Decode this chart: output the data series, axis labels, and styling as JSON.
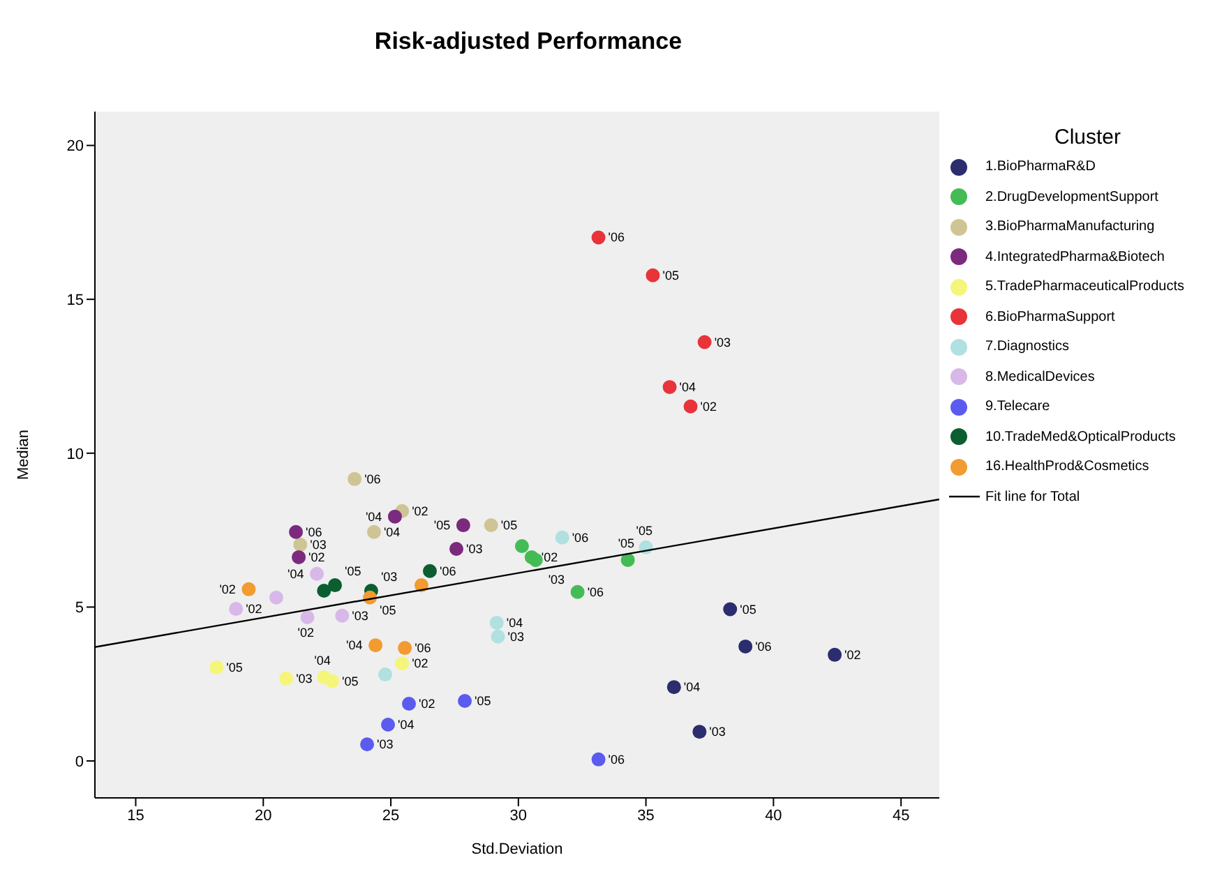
{
  "chart_data": {
    "type": "scatter",
    "title": "Risk-adjusted Performance",
    "xlabel": "Std.Deviation",
    "ylabel": "Median",
    "legend_title": "Cluster",
    "legend": "right",
    "marker": "circle",
    "xlim": [
      13.4,
      46.5
    ],
    "xticks": [
      15,
      20,
      25,
      30,
      35,
      40,
      45
    ],
    "ylim": [
      -1.2,
      21.1
    ],
    "yticks": [
      0,
      5,
      10,
      15,
      20
    ],
    "series": [
      {
        "name": "1.BioPharmaR&D",
        "color": "#2b2d6e",
        "x": [
          38.3,
          38.9,
          42.4,
          36.1,
          37.1
        ],
        "values": [
          4.93,
          3.72,
          3.45,
          2.4,
          0.95
        ]
      },
      {
        "name": "2.DrugDevelopmentSupport",
        "color": "#44bb55",
        "x": [
          30.14,
          30.52,
          30.68,
          34.29,
          32.32
        ],
        "values": [
          6.98,
          6.62,
          6.53,
          6.53,
          5.49
        ]
      },
      {
        "name": "3.BioPharmaManufacturing",
        "color": "#cfc494",
        "x": [
          23.58,
          24.34,
          25.44,
          28.93,
          21.45
        ],
        "values": [
          9.16,
          7.44,
          8.12,
          7.66,
          7.03
        ]
      },
      {
        "name": "4.IntegratedPharma&Biotech",
        "color": "#7b2a7e",
        "x": [
          21.28,
          21.39,
          25.16,
          27.84,
          27.57
        ],
        "values": [
          7.44,
          6.62,
          7.94,
          7.66,
          6.89
        ]
      },
      {
        "name": "5.TradePharmaceuticalProducts",
        "color": "#f5f57a",
        "x": [
          18.17,
          20.9,
          22.38,
          22.7,
          25.44
        ],
        "values": [
          3.04,
          2.68,
          2.72,
          2.59,
          3.17
        ]
      },
      {
        "name": "6.BioPharmaSupport",
        "color": "#e8333a",
        "x": [
          33.14,
          35.27,
          37.3,
          35.93,
          36.75
        ],
        "values": [
          17.01,
          15.78,
          13.61,
          12.15,
          11.52
        ]
      },
      {
        "name": "7.Diagnostics",
        "color": "#b0e0e0",
        "x": [
          31.72,
          35.0,
          29.15,
          29.2,
          24.78
        ],
        "values": [
          7.26,
          6.94,
          4.49,
          4.04,
          2.81
        ]
      },
      {
        "name": "8.MedicalDevices",
        "color": "#d8b8e8",
        "x": [
          22.1,
          20.51,
          18.93,
          21.73,
          23.09
        ],
        "values": [
          6.08,
          5.31,
          4.94,
          4.67,
          4.72
        ]
      },
      {
        "name": "9.Telecare",
        "color": "#5b5bf0",
        "x": [
          25.71,
          27.9,
          24.89,
          24.07,
          33.14
        ],
        "values": [
          1.86,
          1.95,
          1.18,
          0.54,
          0.05
        ]
      },
      {
        "name": "10.TradeMed&OpticalProducts",
        "color": "#0b5e2f",
        "x": [
          22.38,
          22.81,
          24.23,
          26.53
        ],
        "values": [
          5.53,
          5.71,
          5.53,
          6.17
        ]
      },
      {
        "name": "16.HealthProd&Cosmetics",
        "color": "#f29b30",
        "x": [
          19.43,
          24.18,
          26.2,
          24.4,
          25.55
        ],
        "values": [
          5.58,
          5.31,
          5.71,
          3.76,
          3.67
        ]
      },
      {
        "name": "Fit line for Total",
        "type": "line",
        "color": "#000000",
        "marker": "none",
        "x": [
          13.4,
          46.5
        ],
        "values": [
          3.7,
          8.5
        ]
      }
    ],
    "annotations": [
      {
        "text": "'05",
        "x": 38.3,
        "y": 4.93
      },
      {
        "text": "'06",
        "x": 38.9,
        "y": 3.72
      },
      {
        "text": "'02",
        "x": 42.4,
        "y": 3.45
      },
      {
        "text": "'04",
        "x": 36.1,
        "y": 2.4
      },
      {
        "text": "'03",
        "x": 37.1,
        "y": 0.95
      },
      {
        "text": "'02",
        "x": 30.52,
        "y": 6.62
      },
      {
        "text": "'03",
        "x": 30.68,
        "y": 6.53
      },
      {
        "text": "'05",
        "x": 34.29,
        "y": 6.53
      },
      {
        "text": "'06",
        "x": 32.32,
        "y": 5.49
      },
      {
        "text": "'06",
        "x": 23.58,
        "y": 9.16
      },
      {
        "text": "'04",
        "x": 24.34,
        "y": 7.44
      },
      {
        "text": "'02",
        "x": 25.44,
        "y": 8.12
      },
      {
        "text": "'05",
        "x": 28.93,
        "y": 7.66
      },
      {
        "text": "'03",
        "x": 21.45,
        "y": 7.03
      },
      {
        "text": "'06",
        "x": 21.28,
        "y": 7.44
      },
      {
        "text": "'02",
        "x": 21.39,
        "y": 6.62
      },
      {
        "text": "'04",
        "x": 25.16,
        "y": 7.94
      },
      {
        "text": "'05",
        "x": 27.84,
        "y": 7.66
      },
      {
        "text": "'03",
        "x": 27.57,
        "y": 6.89
      },
      {
        "text": "'05",
        "x": 18.17,
        "y": 3.04
      },
      {
        "text": "'03",
        "x": 20.9,
        "y": 2.68
      },
      {
        "text": "'04",
        "x": 22.38,
        "y": 2.72
      },
      {
        "text": "'05",
        "x": 22.7,
        "y": 2.59
      },
      {
        "text": "'02",
        "x": 25.44,
        "y": 3.17
      },
      {
        "text": "'06",
        "x": 33.14,
        "y": 17.01
      },
      {
        "text": "'05",
        "x": 35.27,
        "y": 15.78
      },
      {
        "text": "'03",
        "x": 37.3,
        "y": 13.61
      },
      {
        "text": "'04",
        "x": 35.93,
        "y": 12.15
      },
      {
        "text": "'02",
        "x": 36.75,
        "y": 11.52
      },
      {
        "text": "'06",
        "x": 31.72,
        "y": 7.26
      },
      {
        "text": "'05",
        "x": 35.0,
        "y": 6.94
      },
      {
        "text": "'04",
        "x": 29.15,
        "y": 4.49
      },
      {
        "text": "'03",
        "x": 29.2,
        "y": 4.04
      },
      {
        "text": "'04",
        "x": 22.1,
        "y": 6.08
      },
      {
        "text": "'02",
        "x": 18.93,
        "y": 4.94
      },
      {
        "text": "'02",
        "x": 21.73,
        "y": 4.67
      },
      {
        "text": "'03",
        "x": 23.09,
        "y": 4.72
      },
      {
        "text": "'02",
        "x": 25.71,
        "y": 1.86
      },
      {
        "text": "'05",
        "x": 27.9,
        "y": 1.95
      },
      {
        "text": "'04",
        "x": 24.89,
        "y": 1.18
      },
      {
        "text": "'03",
        "x": 24.07,
        "y": 0.54
      },
      {
        "text": "'06",
        "x": 33.14,
        "y": 0.05
      },
      {
        "text": "'05",
        "x": 22.81,
        "y": 5.71
      },
      {
        "text": "'03",
        "x": 24.23,
        "y": 5.53
      },
      {
        "text": "'06",
        "x": 26.53,
        "y": 6.17
      },
      {
        "text": "'02",
        "x": 19.43,
        "y": 5.58
      },
      {
        "text": "'05",
        "x": 24.18,
        "y": 5.31
      },
      {
        "text": "'04",
        "x": 24.4,
        "y": 3.76
      },
      {
        "text": "'06",
        "x": 25.55,
        "y": 3.67
      }
    ]
  }
}
